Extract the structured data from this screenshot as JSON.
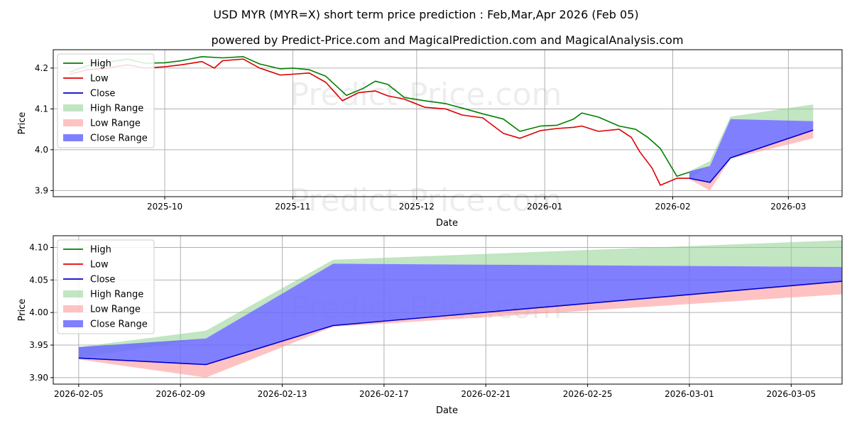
{
  "title": "USD MYR (MYR=X) short term price prediction : Feb,Mar,Apr 2026 (Feb 05)",
  "subtitle": "powered by Predict-Price.com and MagicalPrediction.com and MagicalAnalysis.com",
  "watermark": "Predict-Price.com",
  "colors": {
    "high": "#008000",
    "low": "#dd0000",
    "close": "#0000cc",
    "high_range": "#8fcf8f",
    "low_range": "#ff9a9a",
    "close_range": "#6a6aff",
    "grid": "#b0b0b0"
  },
  "chart_data": [
    {
      "type": "line",
      "xlabel": "Date",
      "ylabel": "Price",
      "xlim": [
        "2025-09-04",
        "2026-03-14"
      ],
      "ylim": [
        3.885,
        4.245
      ],
      "x_ticks": [
        "2025-10-01",
        "2025-11-01",
        "2025-12-01",
        "2026-01-01",
        "2026-02-01",
        "2026-03-01"
      ],
      "x_tick_labels": [
        "2025-10",
        "2025-11",
        "2025-12",
        "2026-01",
        "2026-02",
        "2026-03"
      ],
      "y_ticks": [
        3.9,
        4.0,
        4.1,
        4.2
      ],
      "y_tick_labels": [
        "3.9",
        "4.0",
        "4.1",
        "4.2"
      ],
      "legend": {
        "position": "top-left",
        "entries": [
          "High",
          "Low",
          "Close",
          "High Range",
          "Low Range",
          "Close Range"
        ]
      },
      "series": [
        {
          "name": "High",
          "dates": [
            "2025-09-08",
            "2025-09-12",
            "2025-09-17",
            "2025-09-22",
            "2025-09-26",
            "2025-10-01",
            "2025-10-05",
            "2025-10-10",
            "2025-10-15",
            "2025-10-20",
            "2025-10-24",
            "2025-10-29",
            "2025-11-01",
            "2025-11-05",
            "2025-11-09",
            "2025-11-14",
            "2025-11-18",
            "2025-11-21",
            "2025-11-24",
            "2025-11-28",
            "2025-12-03",
            "2025-12-08",
            "2025-12-12",
            "2025-12-17",
            "2025-12-22",
            "2025-12-26",
            "2025-12-31",
            "2026-01-04",
            "2026-01-08",
            "2026-01-10",
            "2026-01-14",
            "2026-01-19",
            "2026-01-23",
            "2026-01-26",
            "2026-01-29",
            "2026-02-02",
            "2026-02-05"
          ],
          "values": [
            4.19,
            4.205,
            4.214,
            4.222,
            4.212,
            4.213,
            4.218,
            4.228,
            4.225,
            4.228,
            4.21,
            4.198,
            4.2,
            4.196,
            4.18,
            4.133,
            4.15,
            4.168,
            4.16,
            4.128,
            4.12,
            4.113,
            4.102,
            4.088,
            4.075,
            4.045,
            4.058,
            4.06,
            4.075,
            4.09,
            4.08,
            4.058,
            4.05,
            4.03,
            4.003,
            3.935,
            3.945
          ]
        },
        {
          "name": "Low",
          "dates": [
            "2025-09-08",
            "2025-09-12",
            "2025-09-17",
            "2025-09-22",
            "2025-09-26",
            "2025-10-01",
            "2025-10-05",
            "2025-10-10",
            "2025-10-13",
            "2025-10-15",
            "2025-10-20",
            "2025-10-24",
            "2025-10-29",
            "2025-11-01",
            "2025-11-05",
            "2025-11-09",
            "2025-11-13",
            "2025-11-17",
            "2025-11-21",
            "2025-11-24",
            "2025-11-28",
            "2025-12-03",
            "2025-12-08",
            "2025-12-12",
            "2025-12-17",
            "2025-12-22",
            "2025-12-26",
            "2025-12-31",
            "2026-01-04",
            "2026-01-08",
            "2026-01-10",
            "2026-01-14",
            "2026-01-19",
            "2026-01-22",
            "2026-01-24",
            "2026-01-27",
            "2026-01-29",
            "2026-02-02",
            "2026-02-05"
          ],
          "values": [
            4.185,
            4.195,
            4.2,
            4.208,
            4.2,
            4.203,
            4.208,
            4.216,
            4.2,
            4.218,
            4.222,
            4.2,
            4.183,
            4.185,
            4.188,
            4.165,
            4.12,
            4.14,
            4.144,
            4.132,
            4.124,
            4.104,
            4.1,
            4.085,
            4.078,
            4.04,
            4.028,
            4.047,
            4.052,
            4.055,
            4.058,
            4.045,
            4.05,
            4.03,
            3.995,
            3.955,
            3.913,
            3.93,
            3.93
          ]
        },
        {
          "name": "Close",
          "dates": [
            "2026-02-05",
            "2026-02-10",
            "2026-02-15",
            "2026-03-07"
          ],
          "values": [
            3.93,
            3.92,
            3.98,
            4.048
          ]
        },
        {
          "name": "High Range",
          "dates": [
            "2026-02-05",
            "2026-02-10",
            "2026-02-15",
            "2026-03-07"
          ],
          "upper": [
            3.947,
            3.972,
            4.081,
            4.111
          ],
          "lower": [
            3.93,
            3.96,
            4.075,
            4.07
          ]
        },
        {
          "name": "Low Range",
          "dates": [
            "2026-02-05",
            "2026-02-10",
            "2026-02-15",
            "2026-03-07"
          ],
          "upper": [
            3.93,
            3.92,
            3.98,
            4.048
          ],
          "lower": [
            3.928,
            3.9,
            3.978,
            4.028
          ]
        },
        {
          "name": "Close Range",
          "dates": [
            "2026-02-05",
            "2026-02-10",
            "2026-02-15",
            "2026-03-07"
          ],
          "upper": [
            3.947,
            3.96,
            4.075,
            4.07
          ],
          "lower": [
            3.93,
            3.92,
            3.98,
            4.048
          ]
        }
      ]
    },
    {
      "type": "line",
      "xlabel": "Date",
      "ylabel": "Price",
      "xlim": [
        "2026-02-04",
        "2026-03-07"
      ],
      "ylim": [
        3.89,
        4.118
      ],
      "x_ticks": [
        "2026-02-05",
        "2026-02-09",
        "2026-02-13",
        "2026-02-17",
        "2026-02-21",
        "2026-02-25",
        "2026-03-01",
        "2026-03-05"
      ],
      "x_tick_labels": [
        "2026-02-05",
        "2026-02-09",
        "2026-02-13",
        "2026-02-17",
        "2026-02-21",
        "2026-02-25",
        "2026-03-01",
        "2026-03-05"
      ],
      "y_ticks": [
        3.9,
        3.95,
        4.0,
        4.05,
        4.1
      ],
      "y_tick_labels": [
        "3.90",
        "3.95",
        "4.00",
        "4.05",
        "4.10"
      ],
      "legend": {
        "position": "top-left",
        "entries": [
          "High",
          "Low",
          "Close",
          "High Range",
          "Low Range",
          "Close Range"
        ]
      },
      "series": [
        {
          "name": "Close",
          "dates": [
            "2026-02-05",
            "2026-02-10",
            "2026-02-15",
            "2026-03-07"
          ],
          "values": [
            3.93,
            3.92,
            3.98,
            4.048
          ]
        },
        {
          "name": "High Range",
          "dates": [
            "2026-02-05",
            "2026-02-10",
            "2026-02-15",
            "2026-03-07"
          ],
          "upper": [
            3.947,
            3.972,
            4.081,
            4.111
          ],
          "lower": [
            3.93,
            3.96,
            4.075,
            4.07
          ]
        },
        {
          "name": "Low Range",
          "dates": [
            "2026-02-05",
            "2026-02-10",
            "2026-02-15",
            "2026-03-07"
          ],
          "upper": [
            3.93,
            3.92,
            3.98,
            4.048
          ],
          "lower": [
            3.928,
            3.9,
            3.978,
            4.028
          ]
        },
        {
          "name": "Close Range",
          "dates": [
            "2026-02-05",
            "2026-02-10",
            "2026-02-15",
            "2026-03-07"
          ],
          "upper": [
            3.947,
            3.96,
            4.075,
            4.07
          ],
          "lower": [
            3.93,
            3.92,
            3.98,
            4.048
          ]
        }
      ]
    }
  ]
}
